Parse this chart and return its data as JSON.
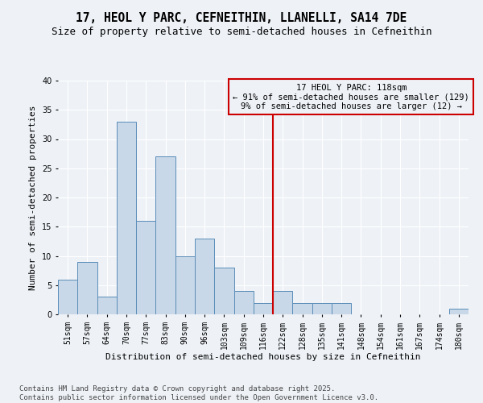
{
  "title_line1": "17, HEOL Y PARC, CEFNEITHIN, LLANELLI, SA14 7DE",
  "title_line2": "Size of property relative to semi-detached houses in Cefneithin",
  "xlabel": "Distribution of semi-detached houses by size in Cefneithin",
  "ylabel": "Number of semi-detached properties",
  "categories": [
    "51sqm",
    "57sqm",
    "64sqm",
    "70sqm",
    "77sqm",
    "83sqm",
    "90sqm",
    "96sqm",
    "103sqm",
    "109sqm",
    "116sqm",
    "122sqm",
    "128sqm",
    "135sqm",
    "141sqm",
    "148sqm",
    "154sqm",
    "161sqm",
    "167sqm",
    "174sqm",
    "180sqm"
  ],
  "values": [
    6,
    9,
    3,
    33,
    16,
    27,
    10,
    13,
    8,
    4,
    2,
    4,
    2,
    2,
    2,
    0,
    0,
    0,
    0,
    0,
    1
  ],
  "bar_color": "#c8d8e8",
  "bar_edge_color": "#5b8db8",
  "vline_x": 10.5,
  "vline_color": "#cc0000",
  "annotation_title": "17 HEOL Y PARC: 118sqm",
  "annotation_line1": "← 91% of semi-detached houses are smaller (129)",
  "annotation_line2": "9% of semi-detached houses are larger (12) →",
  "annotation_box_color": "#cc0000",
  "ylim": [
    0,
    40
  ],
  "yticks": [
    0,
    5,
    10,
    15,
    20,
    25,
    30,
    35,
    40
  ],
  "background_color": "#eef2f7",
  "grid_color": "#ffffff",
  "footer": "Contains HM Land Registry data © Crown copyright and database right 2025.\nContains public sector information licensed under the Open Government Licence v3.0.",
  "title_fontsize": 10.5,
  "subtitle_fontsize": 9,
  "axis_label_fontsize": 8,
  "tick_fontsize": 7,
  "footer_fontsize": 6.5,
  "ann_fontsize": 7.5
}
